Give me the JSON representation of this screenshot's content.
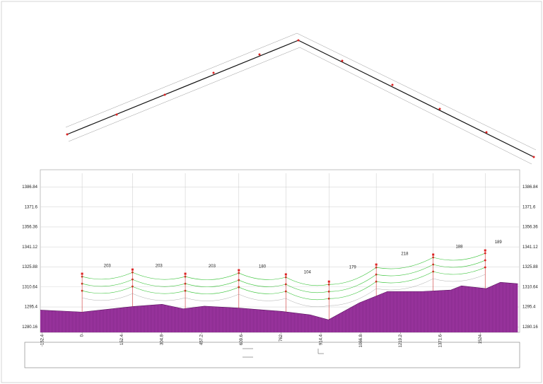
{
  "chart_data": {
    "type": "profile",
    "xlim": [
      -160,
      1675
    ],
    "ylim": [
      1276,
      1400
    ],
    "xticks": [
      -152.4,
      0,
      152.4,
      304.8,
      457.2,
      609.6,
      762,
      914.4,
      1066.8,
      1219.2,
      1371.6,
      1524
    ],
    "yticks": [
      1386.84,
      1371.6,
      1356.36,
      1341.12,
      1325.88,
      1310.64,
      1295.4,
      1280.16
    ],
    "terrain": {
      "color": "#9b2fa0",
      "x": [
        -160,
        0,
        198,
        306,
        387,
        468,
        603,
        765,
        873,
        943,
        1061,
        1169,
        1304,
        1412,
        1452,
        1547,
        1601,
        1668
      ],
      "values": [
        1293,
        1291.5,
        1295.8,
        1297.4,
        1294,
        1296,
        1294.5,
        1292,
        1289.4,
        1285.6,
        1298.5,
        1307.2,
        1307.2,
        1308.3,
        1311.5,
        1309.4,
        1314.2,
        1313.1
      ]
    },
    "towers": {
      "x": [
        0,
        193,
        395,
        600,
        780,
        945,
        1126,
        1344,
        1543
      ],
      "top": [
        1320.7,
        1323.9,
        1320.7,
        1323.4,
        1320.2,
        1314.7,
        1327.7,
        1335.3,
        1338.5
      ]
    },
    "spans": [
      "203",
      "203",
      "203",
      "180",
      "104",
      "179",
      "218",
      "188",
      "189"
    ],
    "grid": true
  }
}
